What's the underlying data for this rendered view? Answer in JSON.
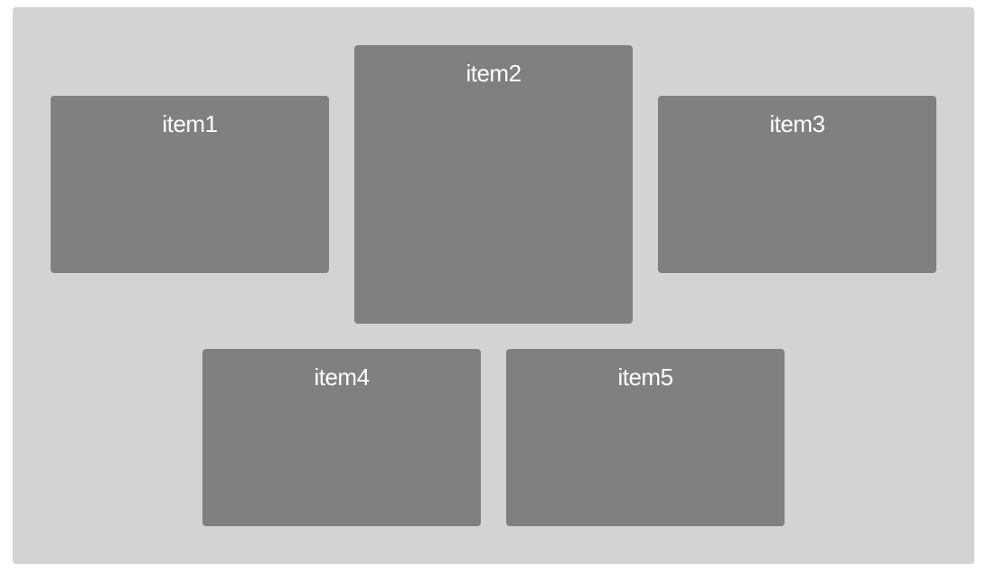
{
  "colors": {
    "container_background": "#d3d3d3",
    "item_background": "#808080",
    "item_text": "#ffffff"
  },
  "items": [
    {
      "label": "item1"
    },
    {
      "label": "item2"
    },
    {
      "label": "item3"
    },
    {
      "label": "item4"
    },
    {
      "label": "item5"
    }
  ]
}
